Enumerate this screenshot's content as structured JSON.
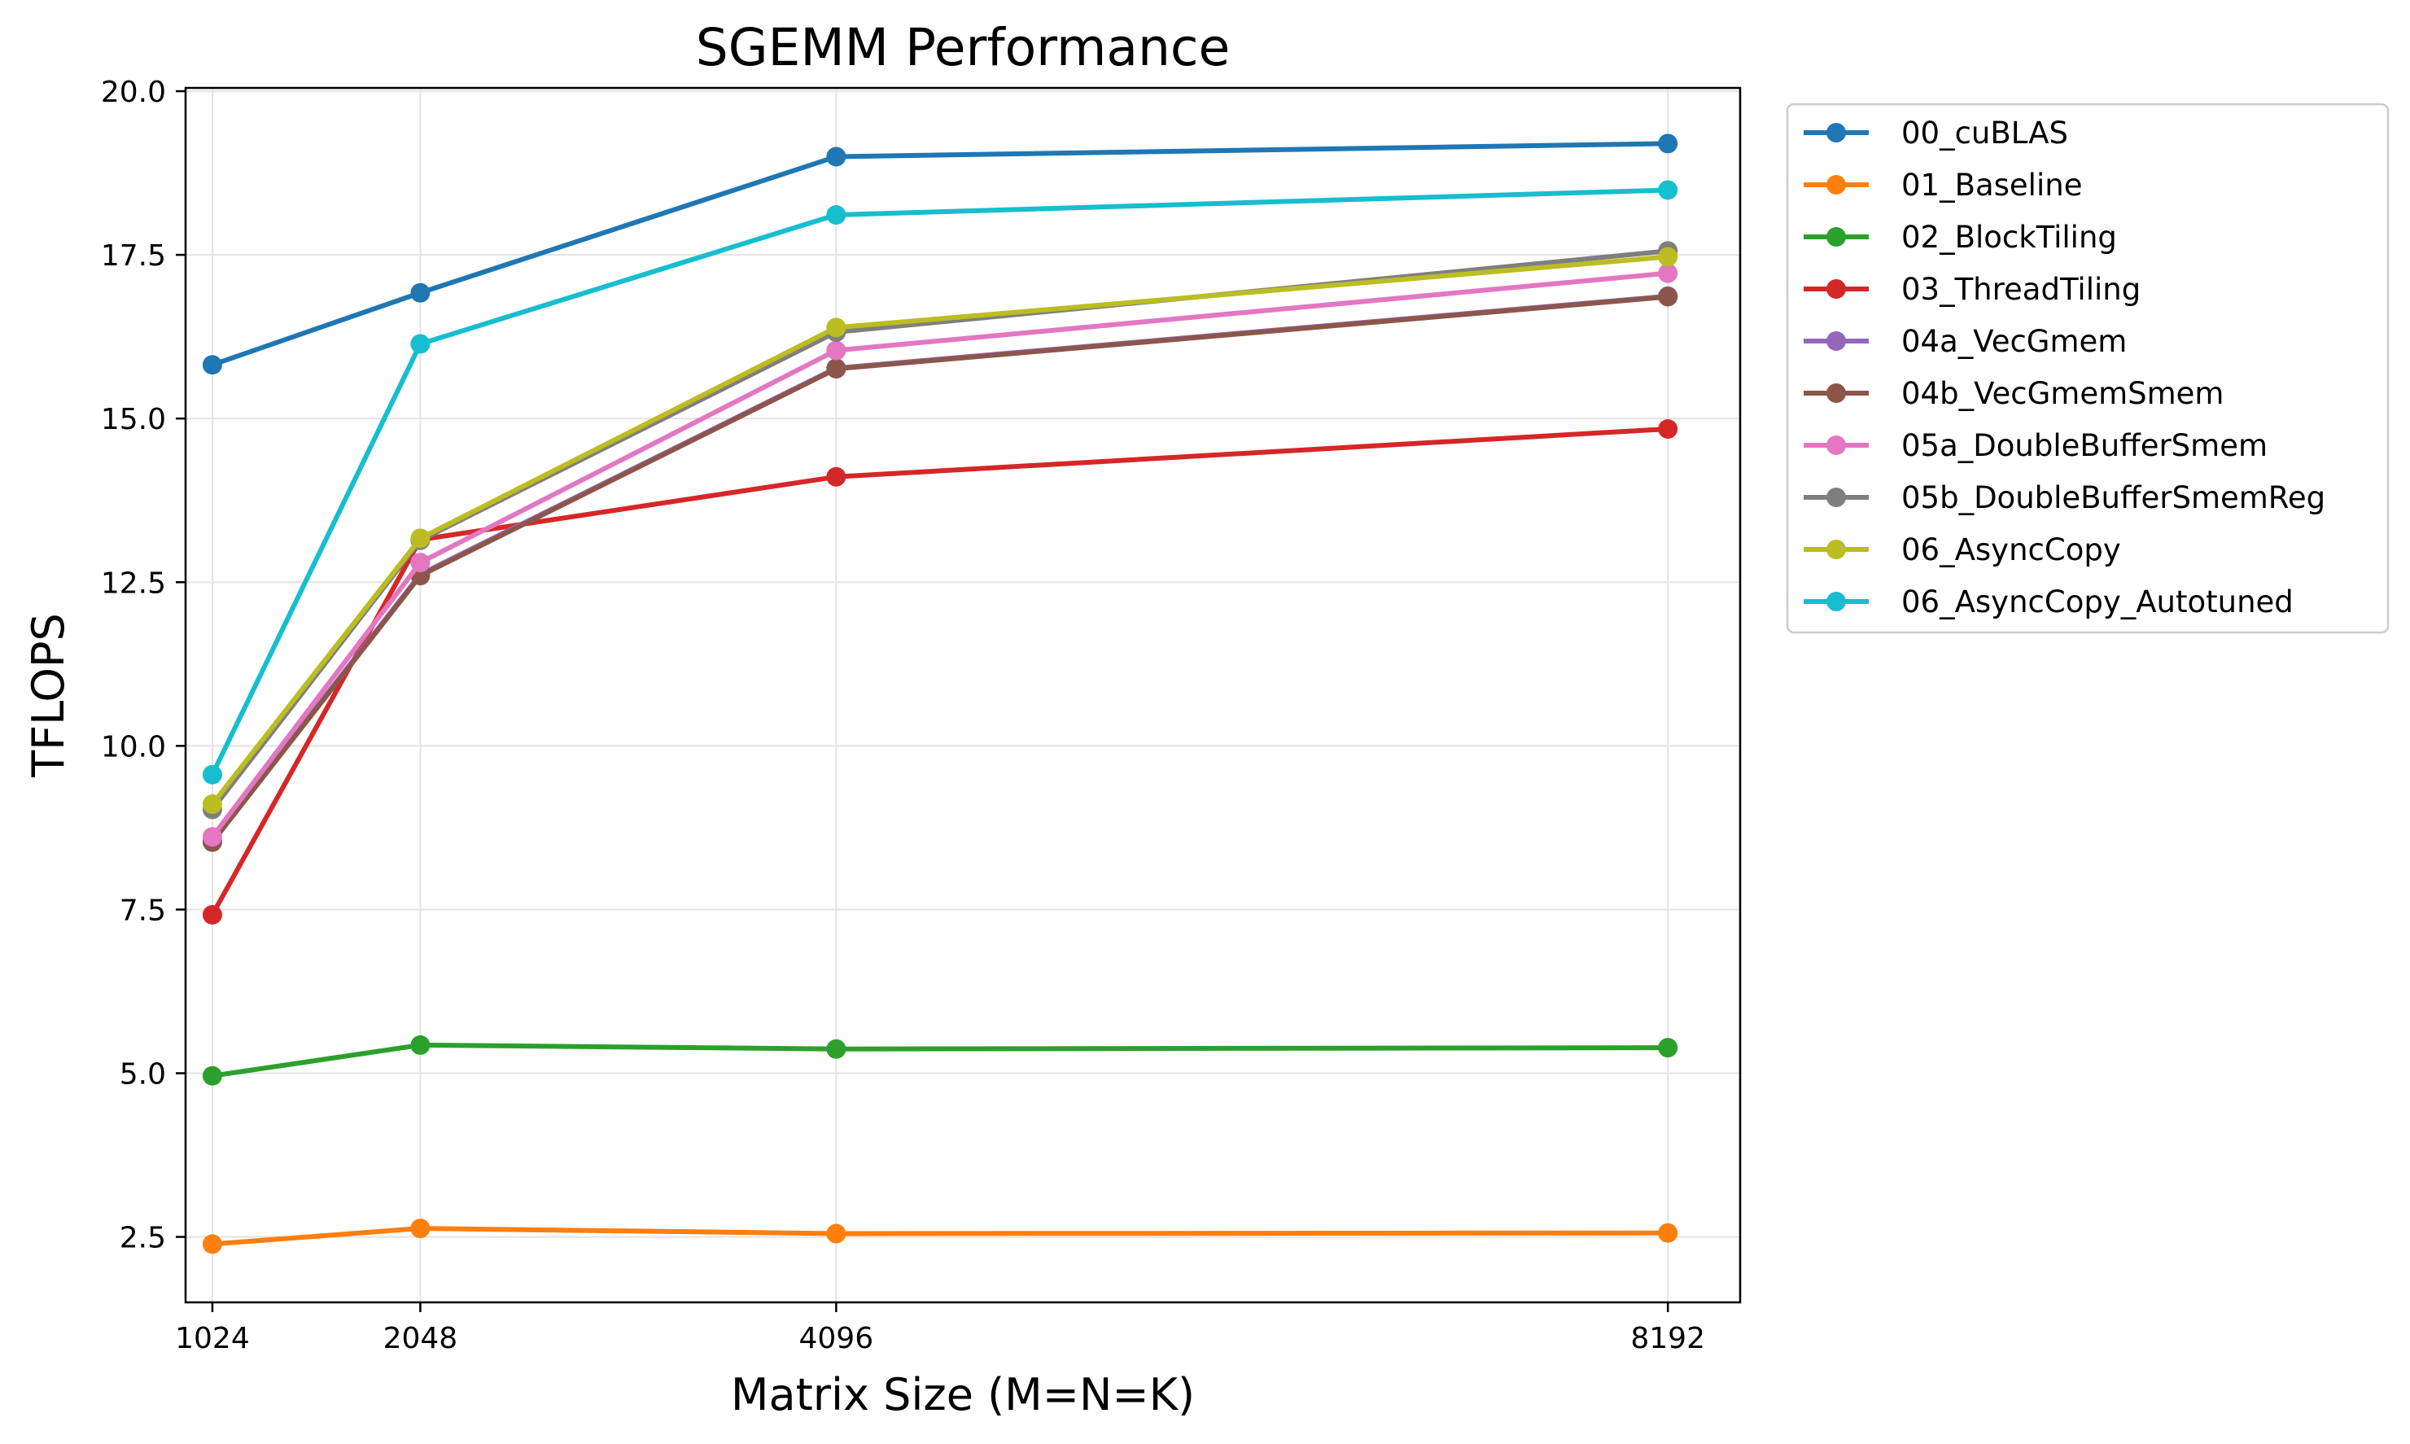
{
  "chart_data": {
    "type": "line",
    "title": "SGEMM Performance",
    "xlabel": "Matrix Size (M=N=K)",
    "ylabel": "TFLOPS",
    "x": [
      1024,
      2048,
      4096,
      8192
    ],
    "x_tick_labels": [
      "1024",
      "2048",
      "4096",
      "8192"
    ],
    "xlim": [
      892,
      8548
    ],
    "ylim": [
      1.5,
      20.05
    ],
    "y_ticks": [
      2.5,
      5.0,
      7.5,
      10.0,
      12.5,
      15.0,
      17.5,
      20.0
    ],
    "y_tick_labels": [
      "2.5",
      "5.0",
      "7.5",
      "10.0",
      "12.5",
      "15.0",
      "17.5",
      "20.0"
    ],
    "grid": true,
    "legend_placement": "outside-right-top",
    "series": [
      {
        "name": "00_cuBLAS",
        "color": "#1f77b4",
        "values": [
          15.82,
          16.92,
          19.0,
          19.2
        ]
      },
      {
        "name": "01_Baseline",
        "color": "#ff7f0e",
        "values": [
          2.39,
          2.63,
          2.55,
          2.56
        ]
      },
      {
        "name": "02_BlockTiling",
        "color": "#2ca02c",
        "values": [
          4.96,
          5.43,
          5.37,
          5.39
        ]
      },
      {
        "name": "03_ThreadTiling",
        "color": "#d62728",
        "values": [
          7.42,
          13.15,
          14.11,
          14.84
        ]
      },
      {
        "name": "04a_VecGmem",
        "color": "#9467bd",
        "values": [
          8.55,
          12.62,
          15.77,
          16.87
        ]
      },
      {
        "name": "04b_VecGmemSmem",
        "color": "#8c564b",
        "values": [
          8.53,
          12.6,
          15.76,
          16.86
        ]
      },
      {
        "name": "05a_DoubleBufferSmem",
        "color": "#e377c2",
        "values": [
          8.61,
          12.8,
          16.04,
          17.22
        ]
      },
      {
        "name": "05b_DoubleBufferSmemReg",
        "color": "#7f7f7f",
        "values": [
          9.03,
          13.14,
          16.32,
          17.56
        ]
      },
      {
        "name": "06_AsyncCopy",
        "color": "#bcbd22",
        "values": [
          9.11,
          13.17,
          16.39,
          17.47
        ]
      },
      {
        "name": "06_AsyncCopy_Autotuned",
        "color": "#17becf",
        "values": [
          9.56,
          16.14,
          18.11,
          18.49
        ]
      }
    ]
  }
}
